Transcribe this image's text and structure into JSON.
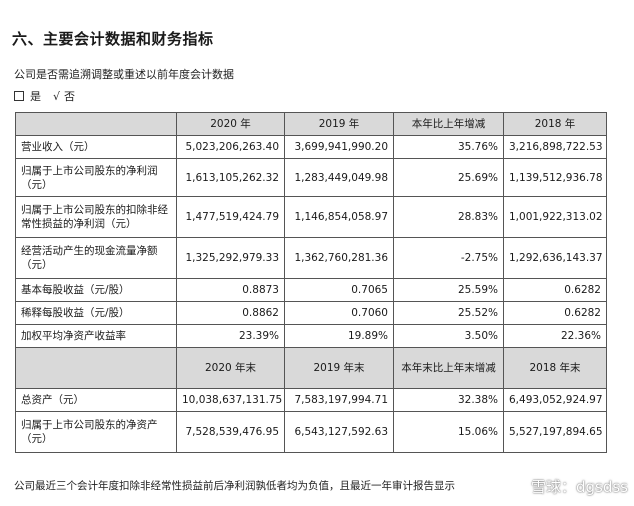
{
  "section_title": "六、主要会计数据和财务指标",
  "subtitle": "公司是否需追溯调整或重述以前年度会计数据",
  "choice": {
    "yes_label": "是",
    "check_symbol": "√",
    "no_label": "否"
  },
  "table": {
    "header1": [
      "",
      "2020 年",
      "2019 年",
      "本年比上年增减",
      "2018 年"
    ],
    "rows1": [
      {
        "label": "营业收入（元）",
        "v2020": "5,023,206,263.40",
        "v2019": "3,699,941,990.20",
        "change": "35.76%",
        "v2018": "3,216,898,722.53"
      },
      {
        "label": "归属于上市公司股东的净利润（元）",
        "v2020": "1,613,105,262.32",
        "v2019": "1,283,449,049.98",
        "change": "25.69%",
        "v2018": "1,139,512,936.78"
      },
      {
        "label": "归属于上市公司股东的扣除非经常性损益的净利润（元）",
        "v2020": "1,477,519,424.79",
        "v2019": "1,146,854,058.97",
        "change": "28.83%",
        "v2018": "1,001,922,313.02"
      },
      {
        "label": "经营活动产生的现金流量净额（元）",
        "v2020": "1,325,292,979.33",
        "v2019": "1,362,760,281.36",
        "change": "-2.75%",
        "v2018": "1,292,636,143.37"
      },
      {
        "label": "基本每股收益（元/股）",
        "v2020": "0.8873",
        "v2019": "0.7065",
        "change": "25.59%",
        "v2018": "0.6282"
      },
      {
        "label": "稀释每股收益（元/股）",
        "v2020": "0.8862",
        "v2019": "0.7060",
        "change": "25.52%",
        "v2018": "0.6282"
      },
      {
        "label": "加权平均净资产收益率",
        "v2020": "23.39%",
        "v2019": "19.89%",
        "change": "3.50%",
        "v2018": "22.36%"
      }
    ],
    "header2": [
      "",
      "2020 年末",
      "2019 年末",
      "本年末比上年末增减",
      "2018 年末"
    ],
    "rows2": [
      {
        "label": "总资产（元）",
        "v2020": "10,038,637,131.75",
        "v2019": "7,583,197,994.71",
        "change": "32.38%",
        "v2018": "6,493,052,924.97"
      },
      {
        "label": "归属于上市公司股东的净资产（元）",
        "v2020": "7,528,539,476.95",
        "v2019": "6,543,127,592.63",
        "change": "15.06%",
        "v2018": "5,527,197,894.65"
      }
    ]
  },
  "footnote": "公司最近三个会计年度扣除非经常性损益前后净利润孰低者均为负值，且最近一年审计报告显示",
  "watermark": {
    "icon": "snowball-icon",
    "text": "雪球：dgsdss"
  }
}
